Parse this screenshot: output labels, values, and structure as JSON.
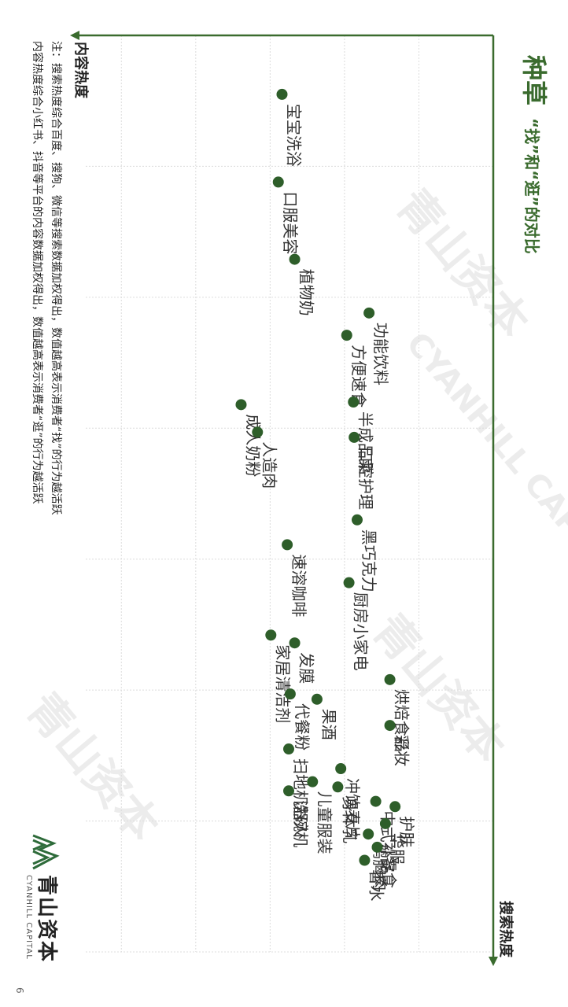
{
  "title": {
    "main": "种草",
    "sub": "“找”和“逛”的对比"
  },
  "notes": [
    "注：搜索热度综合百度、搜狗、微信等搜索数据加权得出，数值越高表示消费者“找”的行为越活跃",
    "内容热度综合小红书、抖音等平台的内容数据加权得出，数值越高表示消费者“逛”的行为越活跃"
  ],
  "logo": {
    "cn": "青山资本",
    "en": "CYANHILL CAPITAL"
  },
  "page_number": "6",
  "watermarks": [
    "青山资本",
    "CYANHILL CAPITAL"
  ],
  "colors": {
    "accent": "#3a6b2e",
    "point": "#2e5e2a",
    "grid": "#dcdcdc"
  },
  "chart_data": {
    "type": "scatter",
    "xlabel": "搜索热度",
    "ylabel": "内容热度",
    "xlim": [
      0,
      7
    ],
    "ylim": [
      0,
      5.5
    ],
    "grid": true,
    "points": [
      {
        "label": "宝宝洗浴",
        "x": 0.45,
        "y": 2.84
      },
      {
        "label": "口服美容",
        "x": 1.12,
        "y": 2.89
      },
      {
        "label": "植物奶",
        "x": 1.71,
        "y": 2.67
      },
      {
        "label": "功能饮料",
        "x": 2.12,
        "y": 1.67
      },
      {
        "label": "方便速食",
        "x": 2.29,
        "y": 1.97
      },
      {
        "label": "成人奶粉",
        "x": 2.82,
        "y": 3.39
      },
      {
        "label": "半成品菜",
        "x": 2.8,
        "y": 1.88
      },
      {
        "label": "人造肉",
        "x": 3.03,
        "y": 3.17
      },
      {
        "label": "口腔护理",
        "x": 3.07,
        "y": 1.87
      },
      {
        "label": "黑巧克力",
        "x": 3.7,
        "y": 1.83
      },
      {
        "label": "速溶咖啡",
        "x": 3.89,
        "y": 2.77
      },
      {
        "label": "厨房小家电",
        "x": 4.18,
        "y": 1.94
      },
      {
        "label": "家居清洁剂",
        "x": 4.58,
        "y": 2.99
      },
      {
        "label": "发膜",
        "x": 4.64,
        "y": 2.67
      },
      {
        "label": "烘焙食品",
        "x": 4.92,
        "y": 1.39
      },
      {
        "label": "代餐粉",
        "x": 5.03,
        "y": 2.73
      },
      {
        "label": "果酒",
        "x": 5.07,
        "y": 2.37
      },
      {
        "label": "彩妆",
        "x": 5.27,
        "y": 1.39
      },
      {
        "label": "扫地机器人",
        "x": 5.45,
        "y": 2.75
      },
      {
        "label": "冲饮麦片",
        "x": 5.6,
        "y": 2.05
      },
      {
        "label": "儿童服装",
        "x": 5.7,
        "y": 2.43
      },
      {
        "label": "身体乳",
        "x": 5.74,
        "y": 2.09
      },
      {
        "label": "洗碗机",
        "x": 5.77,
        "y": 2.75
      },
      {
        "label": "护肤",
        "x": 5.89,
        "y": 1.32
      },
      {
        "label": "中式补品",
        "x": 5.85,
        "y": 1.58
      },
      {
        "label": "华服",
        "x": 6.02,
        "y": 1.45
      },
      {
        "label": "鸡胸肉",
        "x": 6.1,
        "y": 1.68
      },
      {
        "label": "零食",
        "x": 6.2,
        "y": 1.56
      },
      {
        "label": "香水",
        "x": 6.3,
        "y": 1.73
      }
    ]
  }
}
